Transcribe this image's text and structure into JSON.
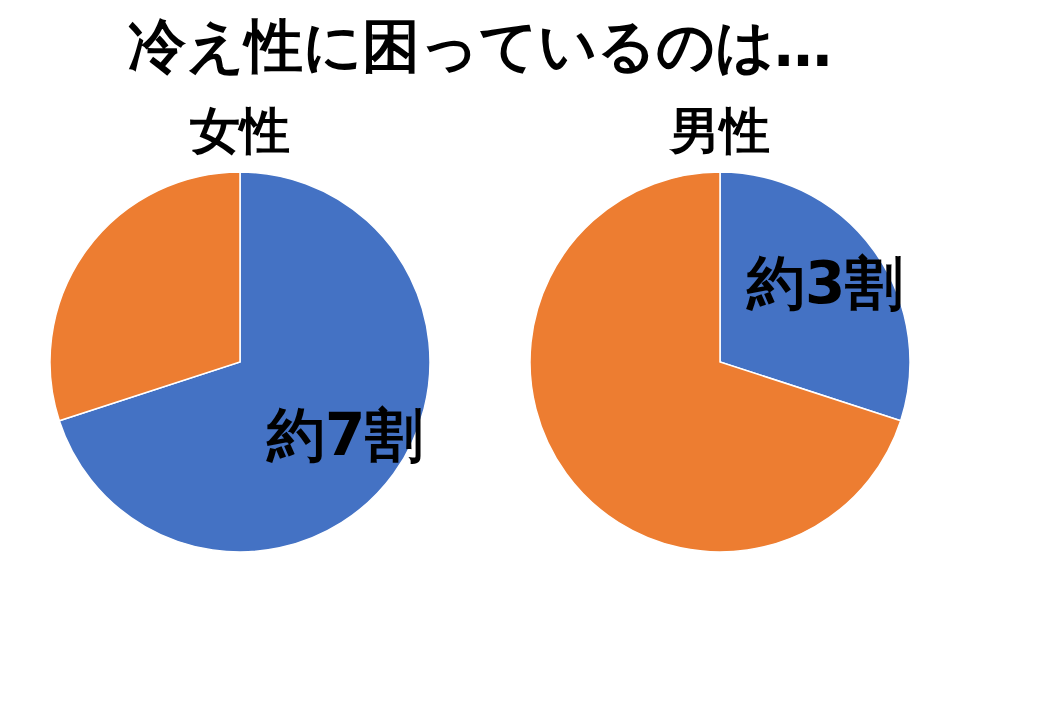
{
  "chart_data": [
    {
      "type": "pie",
      "title": "冷え性に困っているのは…",
      "subtitle": "女性",
      "categories": [
        null,
        null
      ],
      "values": [
        70,
        30
      ],
      "colors": [
        "#4472c4",
        "#ed7d31"
      ],
      "annotations": [
        "約7割"
      ],
      "legend": false
    },
    {
      "type": "pie",
      "subtitle": "男性",
      "categories": [
        null,
        null
      ],
      "values": [
        30,
        70
      ],
      "colors": [
        "#4472c4",
        "#ed7d31"
      ],
      "annotations": [
        "約3割"
      ],
      "legend": false
    }
  ]
}
